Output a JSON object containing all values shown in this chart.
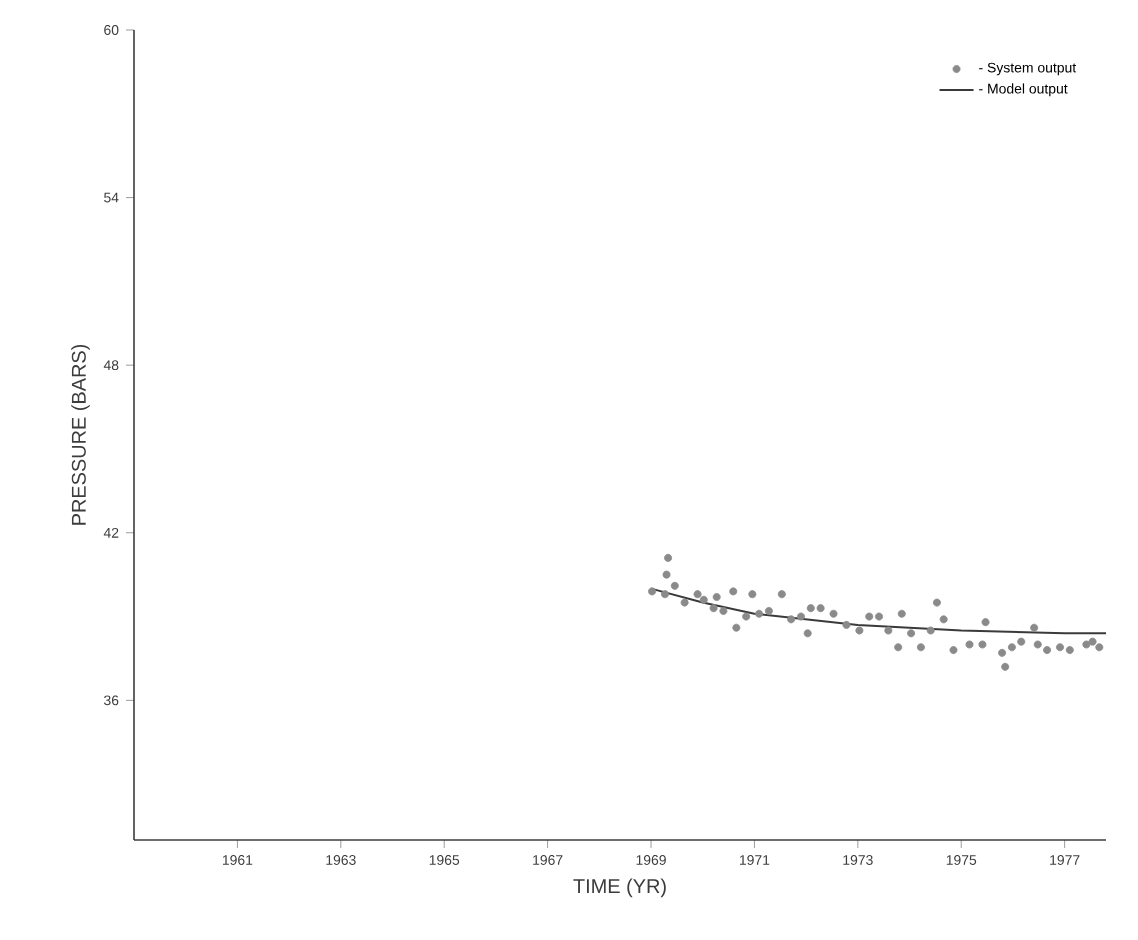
{
  "chart_data": {
    "type": "scatter",
    "xlabel": "TIME (YR)",
    "ylabel": "PRESSURE  (BARS)",
    "xlim": [
      1959,
      1977.8
    ],
    "ylim": [
      31,
      60
    ],
    "xticks": [
      1961,
      1963,
      1965,
      1967,
      1969,
      1971,
      1973,
      1975,
      1977
    ],
    "yticks": [
      36,
      42,
      48,
      54,
      60
    ],
    "grid": false,
    "legend": "top right",
    "series": [
      {
        "name": "- System output",
        "marker": "circle",
        "color": "#8a8a8a",
        "x": [
          1969.02,
          1969.33,
          1969.3,
          1969.46,
          1969.27,
          1969.65,
          1969.9,
          1970.02,
          1970.21,
          1970.27,
          1970.4,
          1970.59,
          1970.65,
          1970.84,
          1970.96,
          1971.09,
          1971.28,
          1971.53,
          1971.71,
          1971.9,
          1972.09,
          1972.28,
          1972.53,
          1972.03,
          1972.78,
          1973.03,
          1973.22,
          1973.41,
          1973.59,
          1973.78,
          1973.85,
          1974.03,
          1974.22,
          1974.41,
          1974.53,
          1974.66,
          1974.85,
          1975.16,
          1975.41,
          1975.47,
          1975.79,
          1975.85,
          1975.98,
          1976.16,
          1976.41,
          1976.48,
          1976.66,
          1976.91,
          1977.1,
          1977.42,
          1977.54,
          1977.67
        ],
        "values": [
          39.9,
          41.1,
          40.5,
          40.1,
          39.8,
          39.5,
          39.8,
          39.6,
          39.3,
          39.7,
          39.2,
          39.9,
          38.6,
          39.0,
          39.8,
          39.1,
          39.2,
          39.8,
          38.9,
          39.0,
          39.3,
          39.3,
          39.1,
          38.4,
          38.7,
          38.5,
          39.0,
          39.0,
          38.5,
          37.9,
          39.1,
          38.4,
          37.9,
          38.5,
          39.5,
          38.9,
          37.8,
          38.0,
          38.0,
          38.8,
          37.7,
          37.2,
          37.9,
          38.1,
          38.6,
          38.0,
          37.8,
          37.9,
          37.8,
          38.0,
          38.1,
          37.9
        ]
      },
      {
        "name": "- Model output",
        "type": "line",
        "color": "#3a3a3a",
        "marker": "none",
        "line_style": "solid",
        "x": [
          1969.0,
          1970,
          1971,
          1972,
          1973,
          1974,
          1975,
          1976,
          1977,
          1977.8
        ],
        "values": [
          40.0,
          39.5,
          39.1,
          38.9,
          38.7,
          38.6,
          38.5,
          38.45,
          38.4,
          38.4
        ]
      }
    ]
  }
}
